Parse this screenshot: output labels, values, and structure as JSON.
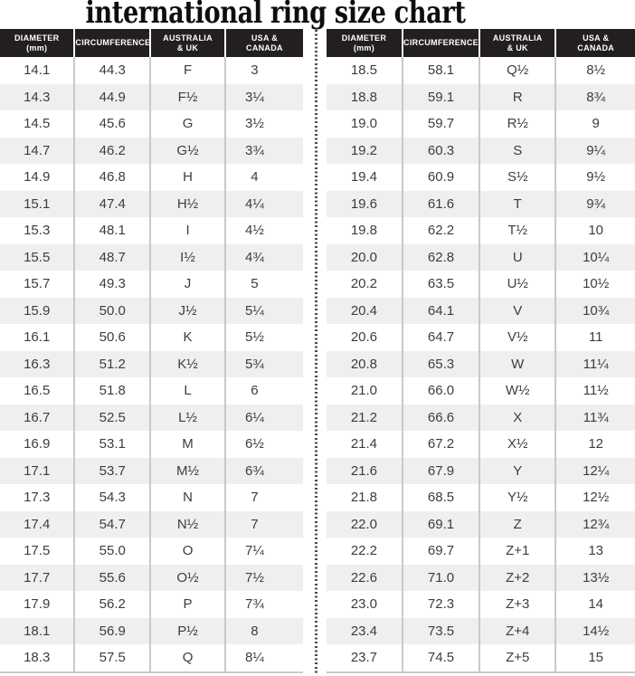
{
  "title": "international ring size chart",
  "display_columns": [
    "DIAMETER\n(mm)",
    "CIRCUMFERENCE",
    "AUSTRALIA\n& UK",
    "USA &\nCANADA"
  ],
  "chart_data": {
    "type": "table",
    "title": "international ring size chart",
    "columns": [
      "Diameter (mm)",
      "Circumference",
      "Australia & UK",
      "USA & Canada"
    ],
    "left_table_rows": [
      [
        "14.1",
        "44.3",
        "F",
        "3"
      ],
      [
        "14.3",
        "44.9",
        "F½",
        "3¼"
      ],
      [
        "14.5",
        "45.6",
        "G",
        "3½"
      ],
      [
        "14.7",
        "46.2",
        "G½",
        "3¾"
      ],
      [
        "14.9",
        "46.8",
        "H",
        "4"
      ],
      [
        "15.1",
        "47.4",
        "H½",
        "4¼"
      ],
      [
        "15.3",
        "48.1",
        "I",
        "4½"
      ],
      [
        "15.5",
        "48.7",
        "I½",
        "4¾"
      ],
      [
        "15.7",
        "49.3",
        "J",
        "5"
      ],
      [
        "15.9",
        "50.0",
        "J½",
        "5¼"
      ],
      [
        "16.1",
        "50.6",
        "K",
        "5½"
      ],
      [
        "16.3",
        "51.2",
        "K½",
        "5¾"
      ],
      [
        "16.5",
        "51.8",
        "L",
        "6"
      ],
      [
        "16.7",
        "52.5",
        "L½",
        "6¼"
      ],
      [
        "16.9",
        "53.1",
        "M",
        "6½"
      ],
      [
        "17.1",
        "53.7",
        "M½",
        "6¾"
      ],
      [
        "17.3",
        "54.3",
        "N",
        "7"
      ],
      [
        "17.4",
        "54.7",
        "N½",
        "7"
      ],
      [
        "17.5",
        "55.0",
        "O",
        "7¼"
      ],
      [
        "17.7",
        "55.6",
        "O½",
        "7½"
      ],
      [
        "17.9",
        "56.2",
        "P",
        "7¾"
      ],
      [
        "18.1",
        "56.9",
        "P½",
        "8"
      ],
      [
        "18.3",
        "57.5",
        "Q",
        "8¼"
      ]
    ],
    "right_table_rows": [
      [
        "18.5",
        "58.1",
        "Q½",
        "8½"
      ],
      [
        "18.8",
        "59.1",
        "R",
        "8¾"
      ],
      [
        "19.0",
        "59.7",
        "R½",
        "9"
      ],
      [
        "19.2",
        "60.3",
        "S",
        "9¼"
      ],
      [
        "19.4",
        "60.9",
        "S½",
        "9½"
      ],
      [
        "19.6",
        "61.6",
        "T",
        "9¾"
      ],
      [
        "19.8",
        "62.2",
        "T½",
        "10"
      ],
      [
        "20.0",
        "62.8",
        "U",
        "10¼"
      ],
      [
        "20.2",
        "63.5",
        "U½",
        "10½"
      ],
      [
        "20.4",
        "64.1",
        "V",
        "10¾"
      ],
      [
        "20.6",
        "64.7",
        "V½",
        "11"
      ],
      [
        "20.8",
        "65.3",
        "W",
        "11¼"
      ],
      [
        "21.0",
        "66.0",
        "W½",
        "11½"
      ],
      [
        "21.2",
        "66.6",
        "X",
        "11¾"
      ],
      [
        "21.4",
        "67.2",
        "X½",
        "12"
      ],
      [
        "21.6",
        "67.9",
        "Y",
        "12¼"
      ],
      [
        "21.8",
        "68.5",
        "Y½",
        "12½"
      ],
      [
        "22.0",
        "69.1",
        "Z",
        "12¾"
      ],
      [
        "22.2",
        "69.7",
        "Z+1",
        "13"
      ],
      [
        "22.6",
        "71.0",
        "Z+2",
        "13½"
      ],
      [
        "23.0",
        "72.3",
        "Z+3",
        "14"
      ],
      [
        "23.4",
        "73.5",
        "Z+4",
        "14½"
      ],
      [
        "23.7",
        "74.5",
        "Z+5",
        "15"
      ]
    ]
  },
  "colors": {
    "header_bg": "#231f20",
    "header_text": "#ffffff",
    "row_stripe": "#efefef",
    "body_text": "#3d3d3d",
    "separator_line": "#c9c9c9",
    "divider_dot": "#4c4c4c",
    "title_text": "#0e0e0e"
  }
}
